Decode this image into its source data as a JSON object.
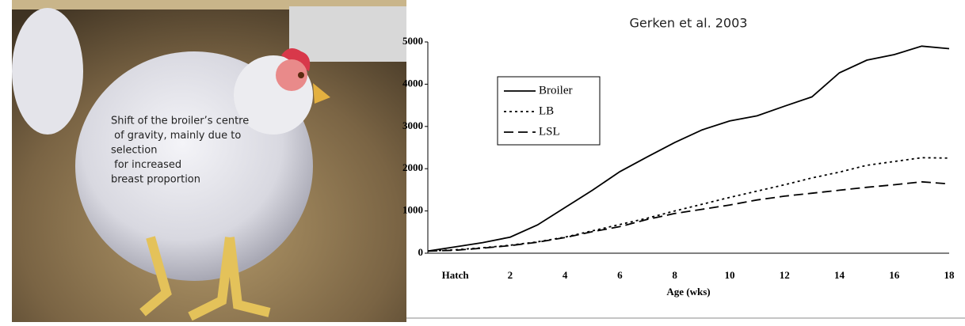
{
  "chart_data": {
    "type": "line",
    "title": "Gerken et al. 2003",
    "x_label": "Age (wks)",
    "categories": [
      null,
      "Hatch",
      null,
      "2",
      null,
      "4",
      null,
      "6",
      null,
      "8",
      null,
      "10",
      null,
      "12",
      null,
      "14",
      null,
      "16",
      null,
      "18"
    ],
    "series": [
      {
        "name": "Broiler",
        "color": "#000000",
        "dash": "solid",
        "values": [
          50,
          150,
          250,
          380,
          670,
          1080,
          1490,
          1930,
          2280,
          2620,
          2920,
          3130,
          3250,
          3480,
          3700,
          4270,
          4570,
          4700,
          4900,
          4840
        ]
      },
      {
        "name": "LB",
        "color": "#000000",
        "dash": "dotted",
        "values": [
          50,
          80,
          130,
          190,
          270,
          380,
          530,
          680,
          830,
          1000,
          1160,
          1320,
          1470,
          1620,
          1780,
          1920,
          2080,
          2170,
          2260,
          2250
        ]
      },
      {
        "name": "LSL",
        "color": "#000000",
        "dash": "dashed",
        "values": [
          50,
          70,
          120,
          180,
          260,
          370,
          510,
          630,
          800,
          940,
          1040,
          1140,
          1260,
          1350,
          1420,
          1490,
          1560,
          1620,
          1690,
          1640
        ]
      }
    ],
    "ylim": [
      0,
      5000
    ],
    "yticks": [
      0,
      1000,
      2000,
      3000,
      4000,
      5000
    ],
    "grid": false,
    "legend": "upper-left"
  },
  "photo": {
    "caption": [
      "Shift of the broiler’s centre",
      " of gravity, mainly due to",
      "selection",
      " for increased",
      "breast proportion"
    ]
  }
}
